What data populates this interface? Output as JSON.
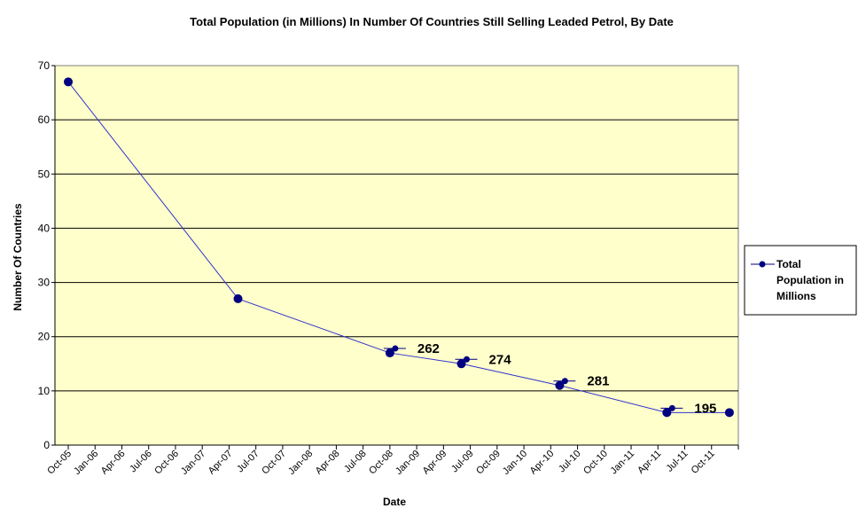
{
  "chart_data": {
    "type": "line",
    "title": "Total Population  (in Millions)  In Number Of Countries  Still Selling Leaded Petrol, By Date",
    "xlabel": "Date",
    "ylabel": "Number Of Countries",
    "ylim": [
      0,
      70
    ],
    "yticks": [
      0,
      10,
      20,
      30,
      40,
      50,
      60,
      70
    ],
    "xticks": [
      "Oct-05",
      "Jan-06",
      "Apr-06",
      "Jul-06",
      "Oct-06",
      "Jan-07",
      "Apr-07",
      "Jul-07",
      "Oct-07",
      "Jan-08",
      "Apr-08",
      "Jul-08",
      "Oct-08",
      "Jan-09",
      "Apr-09",
      "Jul-09",
      "Oct-09",
      "Jan-10",
      "Apr-10",
      "Jul-10",
      "Oct-10",
      "Jan-11",
      "Apr-11",
      "Jul-11",
      "Oct-11"
    ],
    "grid": "horizontal",
    "legend_position": "right",
    "background_color": "#FFFFCC",
    "series_color": "#000080",
    "line_color": "#3333CC",
    "series": [
      {
        "name": "Total Population in Millions",
        "x": [
          "2005-10",
          "2007-05",
          "2008-10",
          "2009-06",
          "2010-05",
          "2011-05",
          "2011-12"
        ],
        "y": [
          67,
          27,
          17,
          15,
          11,
          6,
          6
        ],
        "data_labels": [
          "",
          "",
          "262",
          "274",
          "281",
          "195",
          ""
        ]
      }
    ]
  }
}
